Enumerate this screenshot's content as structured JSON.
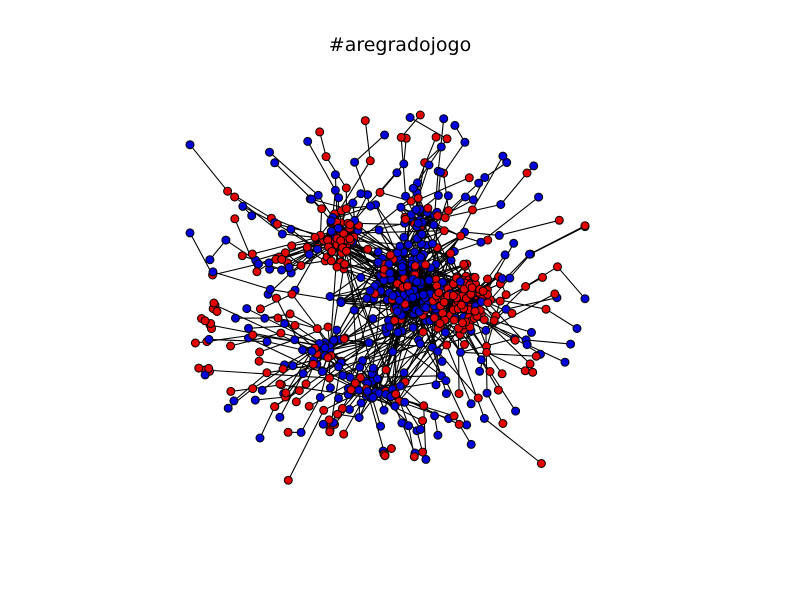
{
  "figure": {
    "title": "#aregradojogo"
  },
  "colors": {
    "group_a": "#e30000",
    "group_b": "#0000d8",
    "edge": "#000000",
    "background": "#ffffff"
  }
}
